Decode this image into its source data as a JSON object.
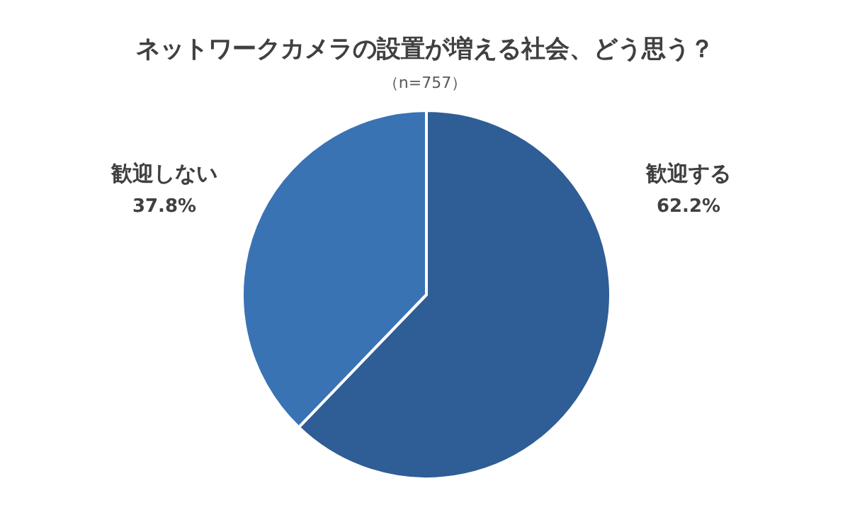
{
  "chart_data": {
    "type": "pie",
    "title": "ネットワークカメラの設置が増える社会、どう思う？",
    "subtitle": "（n=757）",
    "categories": [
      "歓迎する",
      "歓迎しない"
    ],
    "values": [
      62.2,
      37.8
    ],
    "value_labels": [
      "62.2%",
      "37.8%"
    ],
    "colors": [
      "#2f5d95",
      "#3a73b4"
    ]
  }
}
